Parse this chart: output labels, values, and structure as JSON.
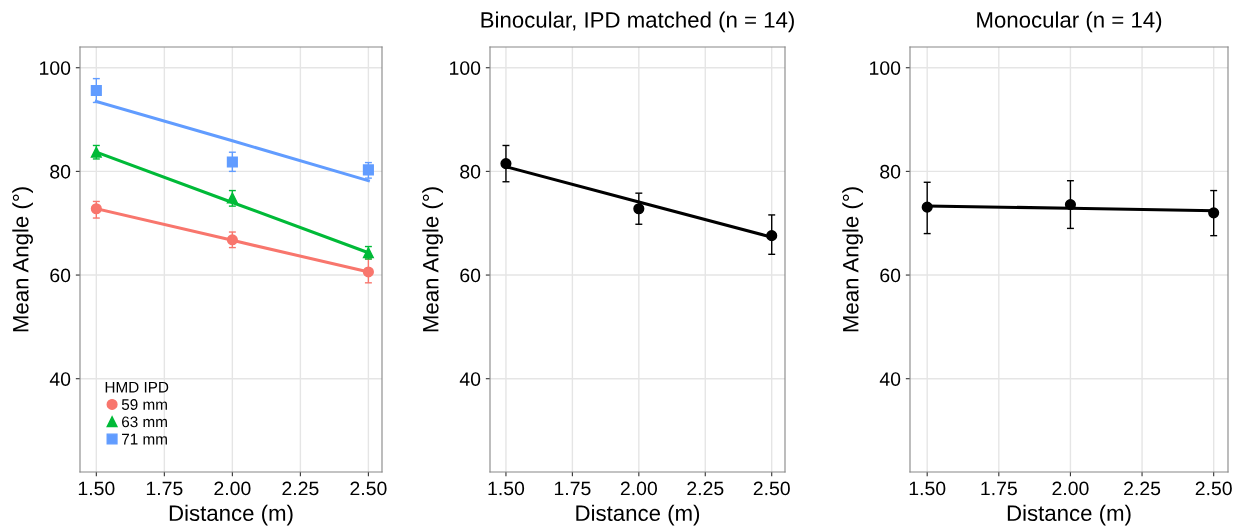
{
  "chart_data": [
    {
      "type": "scatter",
      "xlabel": "Distance (m)",
      "ylabel": "Mean Angle (°)",
      "legend_title": "HMD IPD",
      "legend": "bottom left",
      "grid": true,
      "xlim": [
        1.44,
        2.55
      ],
      "ylim": [
        22,
        104
      ],
      "xticks": [
        {
          "value": 1.5,
          "label": "1.50"
        },
        {
          "value": 1.75,
          "label": "1.75"
        },
        {
          "value": 2.0,
          "label": "2.00"
        },
        {
          "value": 2.25,
          "label": "2.25"
        },
        {
          "value": 2.5,
          "label": "2.50"
        }
      ],
      "yticks": [
        40,
        60,
        80,
        100
      ],
      "x": [
        1.5,
        2.0,
        2.5
      ],
      "series": [
        {
          "name": "59 mm",
          "color": "#f8766d",
          "marker": "circle",
          "values": [
            72.8,
            66.8,
            60.6
          ],
          "errors": [
            [
              71.0,
              74.2
            ],
            [
              65.3,
              68.3
            ],
            [
              58.5,
              63.1
            ]
          ]
        },
        {
          "name": "63 mm",
          "color": "#00ba38",
          "marker": "triangle",
          "values": [
            83.7,
            74.9,
            64.3
          ],
          "errors": [
            [
              82.4,
              85.0
            ],
            [
              73.3,
              76.3
            ],
            [
              63.1,
              65.5
            ]
          ]
        },
        {
          "name": "71 mm",
          "color": "#619cff",
          "marker": "square",
          "values": [
            95.6,
            81.8,
            80.3
          ],
          "errors": [
            [
              93.3,
              97.9
            ],
            [
              80.0,
              83.7
            ],
            [
              78.7,
              81.7
            ]
          ]
        },
        {
          "type": "line",
          "color": "#f8766d",
          "values": [
            72.8,
            66.7,
            60.6
          ]
        },
        {
          "type": "line",
          "color": "#00ba38",
          "values": [
            83.7,
            74.0,
            64.3
          ]
        },
        {
          "type": "line",
          "color": "#619cff",
          "values": [
            93.5,
            85.9,
            78.2
          ]
        }
      ]
    },
    {
      "type": "scatter",
      "title": "Binocular, IPD matched (n = 14)",
      "xlabel": "Distance (m)",
      "ylabel": "Mean Angle (°)",
      "grid": true,
      "xlim": [
        1.44,
        2.55
      ],
      "ylim": [
        22,
        104
      ],
      "xticks": [
        {
          "value": 1.5,
          "label": "1.50"
        },
        {
          "value": 1.75,
          "label": "1.75"
        },
        {
          "value": 2.0,
          "label": "2.00"
        },
        {
          "value": 2.25,
          "label": "2.25"
        },
        {
          "value": 2.5,
          "label": "2.50"
        }
      ],
      "yticks": [
        40,
        60,
        80,
        100
      ],
      "x": [
        1.5,
        2.0,
        2.5
      ],
      "series": [
        {
          "color": "#000000",
          "marker": "circle",
          "values": [
            81.5,
            72.8,
            67.6
          ],
          "errors": [
            [
              78.0,
              85.0
            ],
            [
              69.8,
              75.8
            ],
            [
              64.0,
              71.6
            ]
          ]
        },
        {
          "type": "line",
          "color": "#000000",
          "values": [
            80.9,
            74.1,
            67.3
          ]
        }
      ]
    },
    {
      "type": "scatter",
      "title": "Monocular (n = 14)",
      "xlabel": "Distance (m)",
      "ylabel": "Mean Angle (°)",
      "grid": true,
      "xlim": [
        1.44,
        2.55
      ],
      "ylim": [
        22,
        104
      ],
      "xticks": [
        {
          "value": 1.5,
          "label": "1.50"
        },
        {
          "value": 1.75,
          "label": "1.75"
        },
        {
          "value": 2.0,
          "label": "2.00"
        },
        {
          "value": 2.25,
          "label": "2.25"
        },
        {
          "value": 2.5,
          "label": "2.50"
        }
      ],
      "yticks": [
        40,
        60,
        80,
        100
      ],
      "x": [
        1.5,
        2.0,
        2.5
      ],
      "series": [
        {
          "color": "#000000",
          "marker": "circle",
          "values": [
            73.1,
            73.6,
            72.0
          ],
          "errors": [
            [
              68.0,
              77.9
            ],
            [
              69.0,
              78.2
            ],
            [
              67.6,
              76.3
            ]
          ]
        },
        {
          "type": "line",
          "color": "#000000",
          "values": [
            73.3,
            72.9,
            72.4
          ]
        }
      ]
    }
  ]
}
